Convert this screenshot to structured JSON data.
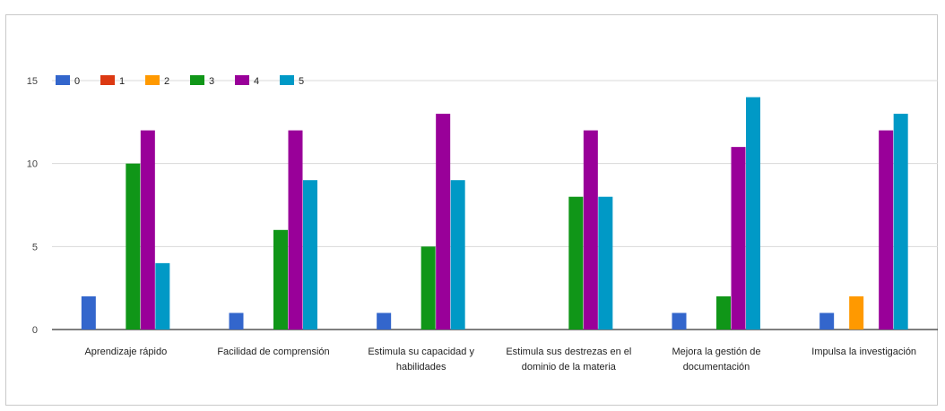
{
  "chart_data": {
    "type": "bar",
    "categories": [
      "Aprendizaje rápido",
      "Facilidad de comprensión",
      "Estimula su capacidad y habilidades",
      "Estimula sus destrezas en el dominio de la materia",
      "Mejora la gestión de documentación",
      "Impulsa la investigación"
    ],
    "category_lines": [
      [
        "Aprendizaje rápido"
      ],
      [
        "Facilidad de comprensión"
      ],
      [
        "Estimula su capacidad y",
        "habilidades"
      ],
      [
        "Estimula sus destrezas en el",
        "dominio de la materia"
      ],
      [
        "Mejora la gestión de",
        "documentación"
      ],
      [
        "Impulsa la investigación"
      ]
    ],
    "series": [
      {
        "name": "0",
        "color": "#3366cc",
        "values": [
          2,
          1,
          1,
          0,
          1,
          1
        ]
      },
      {
        "name": "1",
        "color": "#dc3912",
        "values": [
          0,
          0,
          0,
          0,
          0,
          0
        ]
      },
      {
        "name": "2",
        "color": "#ff9900",
        "values": [
          0,
          0,
          0,
          0,
          0,
          2
        ]
      },
      {
        "name": "3",
        "color": "#109618",
        "values": [
          10,
          6,
          5,
          8,
          2,
          0
        ]
      },
      {
        "name": "4",
        "color": "#990099",
        "values": [
          12,
          12,
          13,
          12,
          11,
          12
        ]
      },
      {
        "name": "5",
        "color": "#0099c6",
        "values": [
          4,
          9,
          9,
          8,
          14,
          13
        ]
      }
    ],
    "yticks": [
      0,
      5,
      10,
      15
    ],
    "ylim": [
      0,
      15
    ],
    "grid": true,
    "legend_position": "top-left"
  }
}
